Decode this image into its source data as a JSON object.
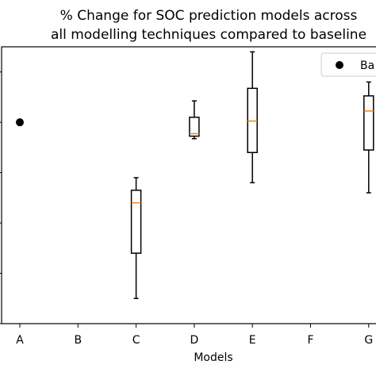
{
  "chart_data": {
    "type": "box",
    "title_lines": [
      "% Change for SOC prediction models across",
      "all modelling techniques compared to baseline"
    ],
    "xlabel": "Models",
    "ylabel": "",
    "categories": [
      "A",
      "B",
      "C",
      "D",
      "E",
      "F",
      "G"
    ],
    "ylim": [
      -8,
      3
    ],
    "baseline": {
      "name": "Ba",
      "points": [
        {
          "category": "A",
          "value": 0
        }
      ]
    },
    "boxes": [
      {
        "category": "C",
        "whisker_low": -7.0,
        "q1": -5.2,
        "median": -3.2,
        "q3": -2.7,
        "whisker_high": -2.2
      },
      {
        "category": "D",
        "whisker_low": -0.65,
        "q1": -0.55,
        "median": -0.45,
        "q3": 0.2,
        "whisker_high": 0.85
      },
      {
        "category": "E",
        "whisker_low": -2.4,
        "q1": -1.2,
        "median": 0.05,
        "q3": 1.35,
        "whisker_high": 2.8
      },
      {
        "category": "G",
        "whisker_low": -2.8,
        "q1": -1.1,
        "median": 0.45,
        "q3": 1.05,
        "whisker_high": 1.6
      }
    ],
    "grid": false,
    "legend_position": "top-right",
    "colors": {
      "box": "#000000",
      "median": "#ff7f0e",
      "marker": "#000000"
    }
  }
}
